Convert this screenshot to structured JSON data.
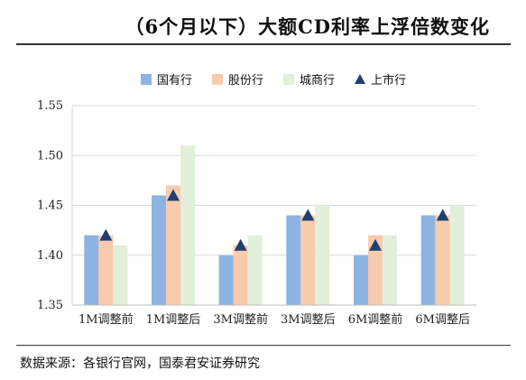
{
  "title": "（6个月以下）大额CD利率上浮倍数变化",
  "source": "数据来源：各银行官网，国泰君安证券研究",
  "chart_data": {
    "type": "bar",
    "categories": [
      "1M调整前",
      "1M调整后",
      "3M调整前",
      "3M调整后",
      "6M调整前",
      "6M调整后"
    ],
    "series": [
      {
        "name": "国有行",
        "color": "#8db3e2",
        "values": [
          1.42,
          1.46,
          1.4,
          1.44,
          1.4,
          1.44
        ]
      },
      {
        "name": "股份行",
        "color": "#f8cbad",
        "values": [
          1.42,
          1.47,
          1.41,
          1.44,
          1.42,
          1.44
        ]
      },
      {
        "name": "城商行",
        "color": "#e2efd9",
        "values": [
          1.41,
          1.51,
          1.42,
          1.45,
          1.42,
          1.45
        ]
      },
      {
        "name": "上市行",
        "color": "#1f3f73",
        "marker": "triangle",
        "values": [
          1.42,
          1.46,
          1.41,
          1.44,
          1.41,
          1.44
        ]
      }
    ],
    "ylim": [
      1.35,
      1.55
    ],
    "yticks": [
      "1.35",
      "1.40",
      "1.45",
      "1.50",
      "1.55"
    ],
    "grid": true
  }
}
